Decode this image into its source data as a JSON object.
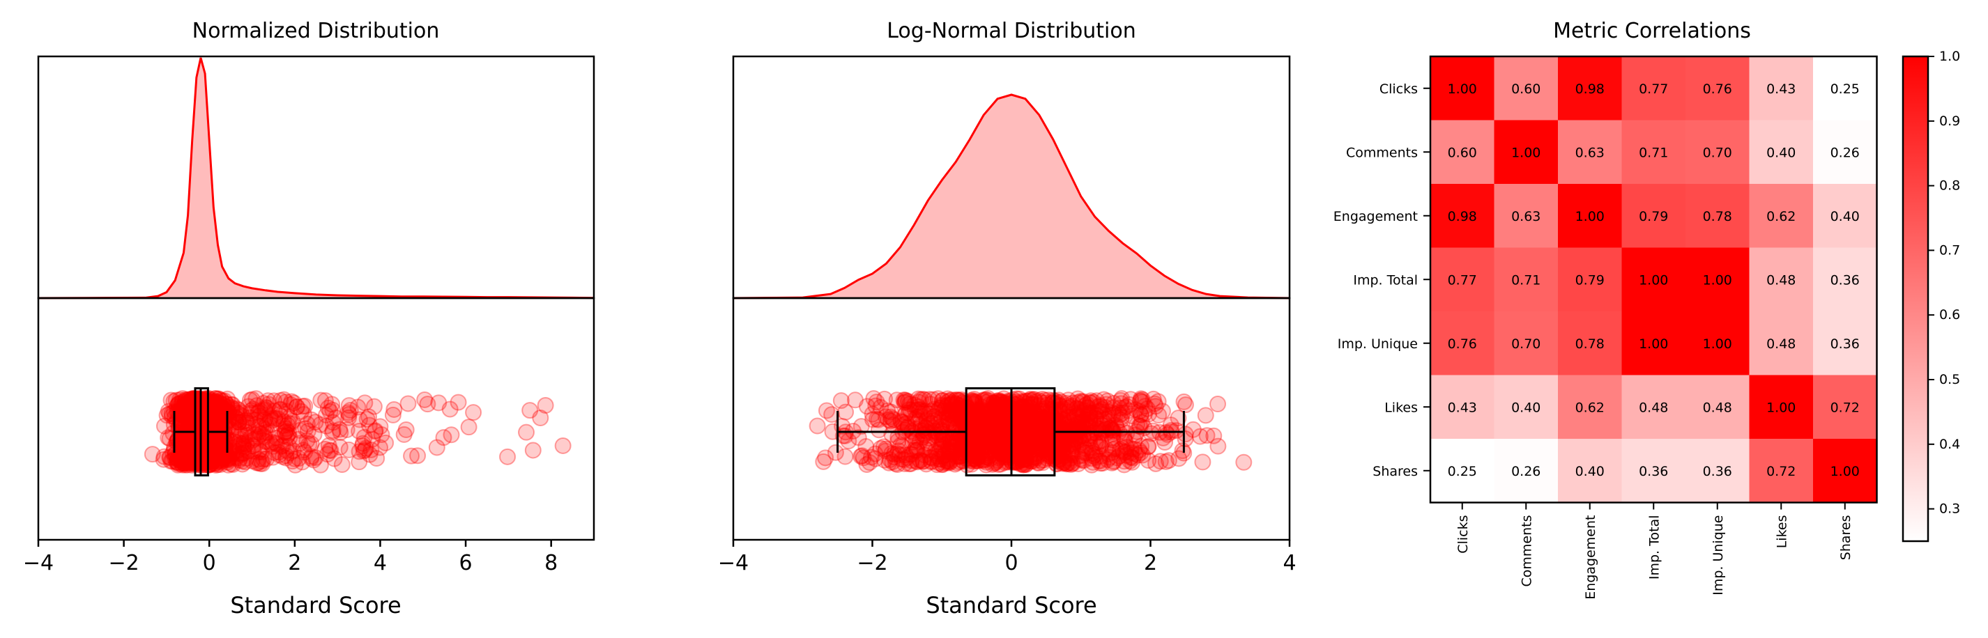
{
  "colors": {
    "accent": "#ff0000",
    "fill": "#ffbcbc",
    "box": "#000000"
  },
  "chart_data": [
    {
      "type": "area",
      "title": "Normalized Distribution",
      "xlabel": "Standard Score",
      "xlim": [
        -4,
        9
      ],
      "xticks": [
        -4,
        -2,
        0,
        2,
        4,
        6,
        8
      ],
      "xtick_labels": [
        "−4",
        "−2",
        "0",
        "2",
        "4",
        "6",
        "8"
      ],
      "density": {
        "x": [
          -4,
          -1.5,
          -1.2,
          -1.0,
          -0.8,
          -0.6,
          -0.5,
          -0.4,
          -0.3,
          -0.2,
          -0.1,
          0.0,
          0.1,
          0.2,
          0.3,
          0.45,
          0.6,
          0.8,
          1.0,
          1.3,
          1.6,
          2.0,
          2.5,
          3.0,
          3.5,
          4.0,
          4.5,
          5.0,
          5.5,
          6.0,
          6.5,
          7.0,
          7.5,
          8.0,
          8.5,
          9.0
        ],
        "y": [
          0,
          0.002,
          0.01,
          0.03,
          0.09,
          0.23,
          0.42,
          0.8,
          1.12,
          1.22,
          1.14,
          0.8,
          0.46,
          0.27,
          0.16,
          0.1,
          0.075,
          0.06,
          0.05,
          0.04,
          0.032,
          0.025,
          0.018,
          0.014,
          0.012,
          0.01,
          0.008,
          0.008,
          0.007,
          0.006,
          0.005,
          0.005,
          0.004,
          0.003,
          0.002,
          0.001
        ]
      },
      "box": {
        "whisker_low": -0.82,
        "q1": -0.33,
        "median": -0.2,
        "q3": -0.03,
        "whisker_high": 0.42
      },
      "points": {
        "n": 1200,
        "center": -0.2,
        "spread": 0.3,
        "tail_scale": 1.8,
        "max": 8.8
      }
    },
    {
      "type": "area",
      "title": "Log-Normal Distribution",
      "xlabel": "Standard Score",
      "xlim": [
        -4,
        4
      ],
      "xticks": [
        -4,
        -2,
        0,
        2,
        4
      ],
      "xtick_labels": [
        "−4",
        "−2",
        "0",
        "2",
        "4"
      ],
      "density": {
        "x": [
          -4.0,
          -3.0,
          -2.6,
          -2.4,
          -2.2,
          -2.0,
          -1.8,
          -1.6,
          -1.4,
          -1.2,
          -1.0,
          -0.8,
          -0.6,
          -0.4,
          -0.2,
          0.0,
          0.2,
          0.4,
          0.6,
          0.8,
          1.0,
          1.2,
          1.4,
          1.6,
          1.8,
          2.0,
          2.2,
          2.4,
          2.6,
          2.8,
          3.0,
          3.4,
          4.0
        ],
        "y": [
          0,
          0.003,
          0.02,
          0.05,
          0.09,
          0.12,
          0.17,
          0.25,
          0.36,
          0.48,
          0.58,
          0.67,
          0.78,
          0.9,
          0.98,
          1.0,
          0.98,
          0.9,
          0.78,
          0.64,
          0.5,
          0.4,
          0.33,
          0.27,
          0.22,
          0.16,
          0.11,
          0.07,
          0.04,
          0.02,
          0.01,
          0.003,
          0
        ]
      },
      "box": {
        "whisker_low": -2.5,
        "q1": -0.65,
        "median": 0.0,
        "q3": 0.62,
        "whisker_high": 2.48
      },
      "points": {
        "n": 1400,
        "center": 0.0,
        "spread": 1.0,
        "tail_scale": 0,
        "max": 4
      }
    },
    {
      "type": "heatmap",
      "title": "Metric Correlations",
      "labels": [
        "Clicks",
        "Comments",
        "Engagement",
        "Imp. Total",
        "Imp. Unique",
        "Likes",
        "Shares"
      ],
      "matrix": [
        [
          1.0,
          0.6,
          0.98,
          0.77,
          0.76,
          0.43,
          0.25
        ],
        [
          0.6,
          1.0,
          0.63,
          0.71,
          0.7,
          0.4,
          0.26
        ],
        [
          0.98,
          0.63,
          1.0,
          0.79,
          0.78,
          0.62,
          0.4
        ],
        [
          0.77,
          0.71,
          0.79,
          1.0,
          1.0,
          0.48,
          0.36
        ],
        [
          0.76,
          0.7,
          0.78,
          1.0,
          1.0,
          0.48,
          0.36
        ],
        [
          0.43,
          0.4,
          0.62,
          0.48,
          0.48,
          1.0,
          0.72
        ],
        [
          0.25,
          0.26,
          0.4,
          0.36,
          0.36,
          0.72,
          1.0
        ]
      ],
      "colorbar": {
        "min": 0.25,
        "max": 1.0,
        "ticks": [
          0.3,
          0.4,
          0.5,
          0.6,
          0.7,
          0.8,
          0.9,
          1.0
        ],
        "tick_labels": [
          "0.3",
          "0.4",
          "0.5",
          "0.6",
          "0.7",
          "0.8",
          "0.9",
          "1.0"
        ]
      }
    }
  ]
}
